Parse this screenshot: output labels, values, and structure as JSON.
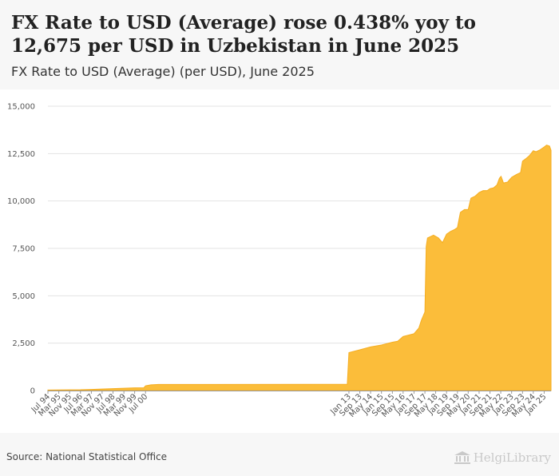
{
  "header": {
    "title": "FX Rate to USD (Average) rose 0.438% yoy to 12,675 per USD in Uzbekistan in June 2025",
    "subtitle": "FX Rate to USD (Average) (per USD), June 2025"
  },
  "footer": {
    "source": "Source: National Statistical Office",
    "logo_text": "HelgiLibrary"
  },
  "colors": {
    "area_fill": "#fbbd3a",
    "area_stroke": "#f5ad20",
    "grid": "#e3e3e3",
    "axis": "#999999"
  },
  "chart_data": {
    "type": "area",
    "title": "FX Rate to USD (Average) (per USD), June 2025",
    "xlabel": "",
    "ylabel": "",
    "ylim": [
      0,
      15000
    ],
    "yticks": [
      0,
      2500,
      5000,
      7500,
      10000,
      12500,
      15000
    ],
    "ytick_labels": [
      "0",
      "2,500",
      "5,000",
      "7,500",
      "10,000",
      "12,500",
      "15,000"
    ],
    "grid": true,
    "x_range": [
      1994.5,
      2025.42
    ],
    "xtick_labels": [
      {
        "label": "Jul 94",
        "t": 1994.5
      },
      {
        "label": "Mar 95",
        "t": 1995.17
      },
      {
        "label": "Nov 95",
        "t": 1995.83
      },
      {
        "label": "Jul 96",
        "t": 1996.5
      },
      {
        "label": "Mar 97",
        "t": 1997.17
      },
      {
        "label": "Nov 97",
        "t": 1997.83
      },
      {
        "label": "Jul 98",
        "t": 1998.5
      },
      {
        "label": "Mar 99",
        "t": 1999.17
      },
      {
        "label": "Nov 99",
        "t": 1999.83
      },
      {
        "label": "Jul 00",
        "t": 2000.5
      },
      {
        "label": "Jan 13",
        "t": 2013.0
      },
      {
        "label": "Sep 13",
        "t": 2013.67
      },
      {
        "label": "May 14",
        "t": 2014.33
      },
      {
        "label": "Jan 15",
        "t": 2015.0
      },
      {
        "label": "Sep 15",
        "t": 2015.67
      },
      {
        "label": "May 16",
        "t": 2016.33
      },
      {
        "label": "Jan 17",
        "t": 2017.0
      },
      {
        "label": "Sep 17",
        "t": 2017.67
      },
      {
        "label": "May 18",
        "t": 2018.33
      },
      {
        "label": "Jan 19",
        "t": 2019.0
      },
      {
        "label": "Sep 19",
        "t": 2019.67
      },
      {
        "label": "May 20",
        "t": 2020.33
      },
      {
        "label": "Jan 21",
        "t": 2021.0
      },
      {
        "label": "Sep 21",
        "t": 2021.67
      },
      {
        "label": "May 22",
        "t": 2022.33
      },
      {
        "label": "Jan 23",
        "t": 2023.0
      },
      {
        "label": "Sep 23",
        "t": 2023.67
      },
      {
        "label": "May 24",
        "t": 2024.33
      },
      {
        "label": "Jan 25",
        "t": 2025.0
      }
    ],
    "series": [
      {
        "name": "FX Rate to USD (Average)",
        "points": [
          {
            "t": 1994.5,
            "v": 25
          },
          {
            "t": 1995.17,
            "v": 30
          },
          {
            "t": 1995.83,
            "v": 35
          },
          {
            "t": 1996.5,
            "v": 40
          },
          {
            "t": 1997.17,
            "v": 60
          },
          {
            "t": 1997.83,
            "v": 80
          },
          {
            "t": 1998.5,
            "v": 100
          },
          {
            "t": 1999.17,
            "v": 120
          },
          {
            "t": 1999.83,
            "v": 140
          },
          {
            "t": 2000.4,
            "v": 150
          },
          {
            "t": 2000.5,
            "v": 250
          },
          {
            "t": 2000.83,
            "v": 300
          },
          {
            "t": 2001.3,
            "v": 320
          },
          {
            "t": 2012.9,
            "v": 330
          },
          {
            "t": 2013.0,
            "v": 2000
          },
          {
            "t": 2013.67,
            "v": 2150
          },
          {
            "t": 2014.33,
            "v": 2300
          },
          {
            "t": 2015.0,
            "v": 2400
          },
          {
            "t": 2015.67,
            "v": 2550
          },
          {
            "t": 2016.0,
            "v": 2600
          },
          {
            "t": 2016.33,
            "v": 2850
          },
          {
            "t": 2017.0,
            "v": 3000
          },
          {
            "t": 2017.3,
            "v": 3300
          },
          {
            "t": 2017.45,
            "v": 3700
          },
          {
            "t": 2017.67,
            "v": 4150
          },
          {
            "t": 2017.75,
            "v": 7600
          },
          {
            "t": 2017.83,
            "v": 8050
          },
          {
            "t": 2018.2,
            "v": 8200
          },
          {
            "t": 2018.5,
            "v": 8050
          },
          {
            "t": 2018.75,
            "v": 7800
          },
          {
            "t": 2019.0,
            "v": 8250
          },
          {
            "t": 2019.25,
            "v": 8400
          },
          {
            "t": 2019.5,
            "v": 8500
          },
          {
            "t": 2019.67,
            "v": 8600
          },
          {
            "t": 2019.85,
            "v": 9400
          },
          {
            "t": 2020.1,
            "v": 9550
          },
          {
            "t": 2020.33,
            "v": 9550
          },
          {
            "t": 2020.5,
            "v": 10150
          },
          {
            "t": 2020.75,
            "v": 10250
          },
          {
            "t": 2021.0,
            "v": 10450
          },
          {
            "t": 2021.25,
            "v": 10550
          },
          {
            "t": 2021.5,
            "v": 10550
          },
          {
            "t": 2021.67,
            "v": 10650
          },
          {
            "t": 2021.9,
            "v": 10700
          },
          {
            "t": 2022.1,
            "v": 10850
          },
          {
            "t": 2022.25,
            "v": 11200
          },
          {
            "t": 2022.35,
            "v": 11300
          },
          {
            "t": 2022.5,
            "v": 10950
          },
          {
            "t": 2022.75,
            "v": 11000
          },
          {
            "t": 2023.0,
            "v": 11250
          },
          {
            "t": 2023.3,
            "v": 11400
          },
          {
            "t": 2023.55,
            "v": 11500
          },
          {
            "t": 2023.67,
            "v": 12100
          },
          {
            "t": 2023.9,
            "v": 12250
          },
          {
            "t": 2024.1,
            "v": 12400
          },
          {
            "t": 2024.33,
            "v": 12650
          },
          {
            "t": 2024.5,
            "v": 12600
          },
          {
            "t": 2024.75,
            "v": 12700
          },
          {
            "t": 2025.0,
            "v": 12850
          },
          {
            "t": 2025.15,
            "v": 12950
          },
          {
            "t": 2025.33,
            "v": 12900
          },
          {
            "t": 2025.42,
            "v": 12675
          }
        ]
      }
    ]
  }
}
